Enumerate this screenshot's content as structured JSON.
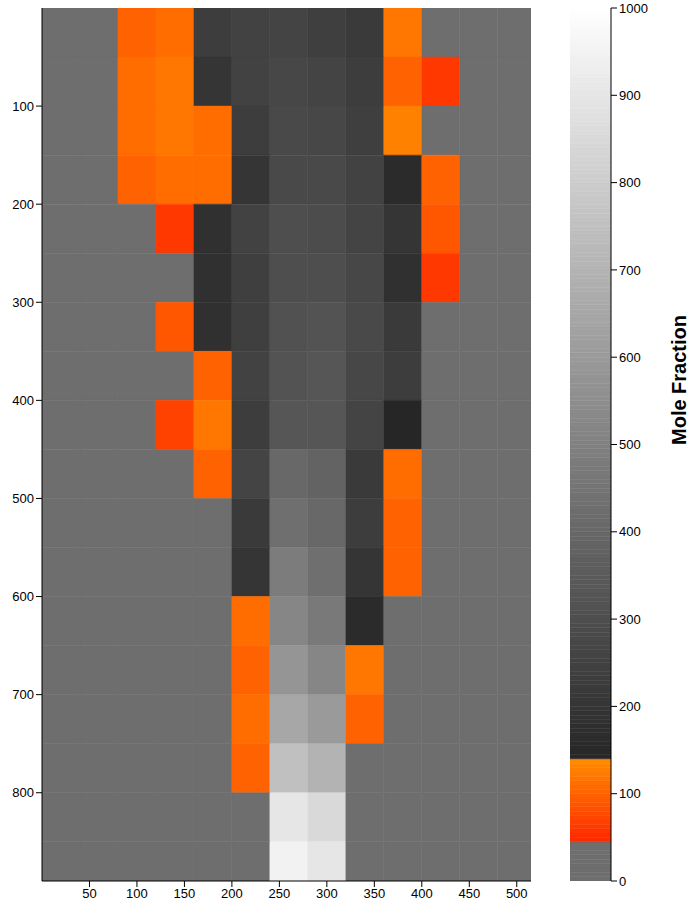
{
  "chart_data": {
    "type": "heatmap",
    "xlim": [
      0,
      515
    ],
    "xticks": [
      50,
      100,
      150,
      200,
      250,
      300,
      350,
      400,
      450,
      500
    ],
    "ylim": [
      890,
      0
    ],
    "yticks": [
      100,
      200,
      300,
      400,
      500,
      600,
      700,
      800
    ],
    "x_edges": [
      0,
      40,
      80,
      120,
      160,
      200,
      240,
      280,
      320,
      360,
      400,
      440,
      480,
      515
    ],
    "y_edges": [
      0,
      50,
      100,
      150,
      200,
      250,
      300,
      350,
      400,
      450,
      500,
      550,
      600,
      650,
      700,
      750,
      800,
      850,
      890
    ],
    "cells": [
      [
        20,
        20,
        100,
        110,
        230,
        250,
        260,
        240,
        220,
        120,
        20,
        20,
        20
      ],
      [
        20,
        20,
        110,
        120,
        200,
        250,
        270,
        260,
        230,
        100,
        60,
        20,
        20
      ],
      [
        20,
        20,
        110,
        120,
        110,
        230,
        280,
        270,
        240,
        130,
        20,
        20,
        20
      ],
      [
        20,
        20,
        100,
        110,
        110,
        200,
        280,
        280,
        250,
        160,
        100,
        20,
        20
      ],
      [
        20,
        20,
        20,
        60,
        180,
        250,
        300,
        290,
        260,
        200,
        90,
        20,
        20
      ],
      [
        20,
        20,
        20,
        20,
        180,
        240,
        300,
        300,
        270,
        180,
        60,
        20,
        20
      ],
      [
        20,
        20,
        20,
        90,
        180,
        240,
        310,
        320,
        280,
        220,
        20,
        20,
        20
      ],
      [
        20,
        20,
        20,
        20,
        100,
        250,
        320,
        330,
        270,
        230,
        20,
        20,
        20
      ],
      [
        20,
        20,
        20,
        70,
        120,
        230,
        330,
        330,
        260,
        140,
        20,
        20,
        20
      ],
      [
        20,
        20,
        20,
        20,
        100,
        260,
        400,
        380,
        220,
        110,
        20,
        20,
        20
      ],
      [
        20,
        20,
        20,
        20,
        20,
        220,
        430,
        400,
        230,
        100,
        20,
        20,
        20
      ],
      [
        20,
        20,
        20,
        20,
        20,
        200,
        480,
        430,
        200,
        100,
        20,
        20,
        20
      ],
      [
        20,
        20,
        20,
        20,
        20,
        110,
        520,
        470,
        160,
        20,
        20,
        20,
        20
      ],
      [
        20,
        20,
        20,
        20,
        20,
        100,
        580,
        520,
        120,
        20,
        20,
        20,
        20
      ],
      [
        20,
        20,
        20,
        20,
        20,
        110,
        650,
        600,
        100,
        20,
        20,
        20,
        20
      ],
      [
        20,
        20,
        20,
        20,
        20,
        100,
        750,
        700,
        20,
        20,
        20,
        20,
        20
      ],
      [
        20,
        20,
        20,
        20,
        20,
        20,
        900,
        850,
        20,
        20,
        20,
        20,
        20
      ],
      [
        20,
        20,
        20,
        20,
        20,
        20,
        950,
        900,
        20,
        20,
        20,
        20,
        20
      ]
    ],
    "colorbar": {
      "range": [
        0,
        1000
      ],
      "ticks": [
        0,
        100,
        200,
        300,
        400,
        500,
        600,
        700,
        800,
        900,
        1000
      ],
      "label": "Mole Fraction"
    }
  }
}
